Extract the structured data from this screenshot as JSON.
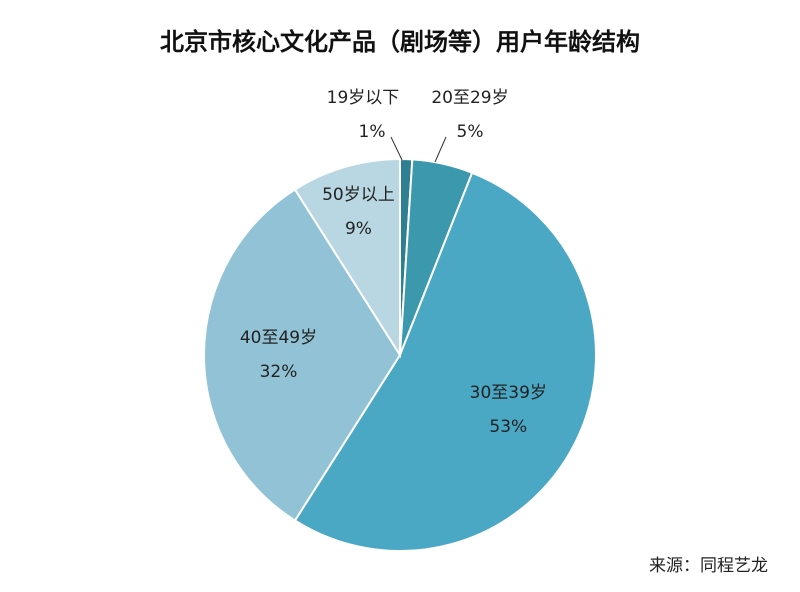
{
  "chart_data": {
    "type": "pie",
    "title": "北京市核心文化产品（剧场等）用户年龄结构",
    "slices": [
      {
        "label": "19岁以下",
        "value": 1,
        "display": "1%",
        "color": "#2f7f93"
      },
      {
        "label": "20至29岁",
        "value": 5,
        "display": "5%",
        "color": "#3c98ad"
      },
      {
        "label": "30至39岁",
        "value": 53,
        "display": "53%",
        "color": "#4aa8c5"
      },
      {
        "label": "40至49岁",
        "value": 32,
        "display": "32%",
        "color": "#92c2d5"
      },
      {
        "label": "50岁以上",
        "value": 9,
        "display": "9%",
        "color": "#b9d7e2"
      }
    ],
    "start": "12 o'clock",
    "direction": "clockwise",
    "legend": "none"
  },
  "source": "来源：同程艺龙"
}
